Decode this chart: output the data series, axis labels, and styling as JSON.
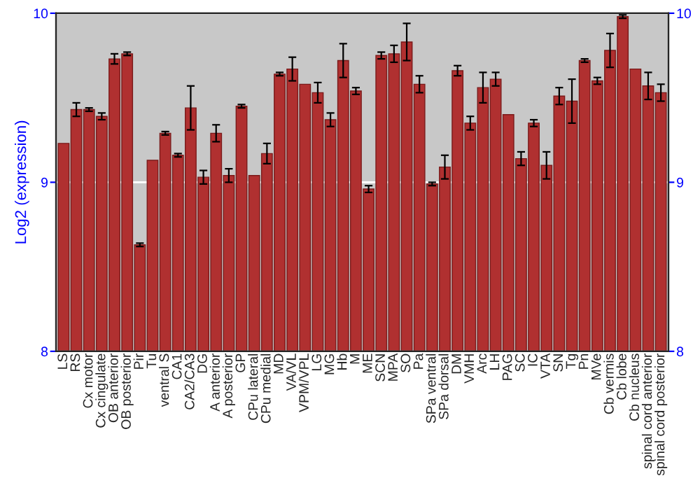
{
  "chart_data": {
    "type": "bar",
    "ylabel": "Log2 (expression)",
    "categories": [
      "LS",
      "RS",
      "Cx motor",
      "Cx cingulate",
      "OB anterior",
      "OB posterior",
      "Pir",
      "Tu",
      "ventral S",
      "CA1",
      "CA2/CA3",
      "DG",
      "A anterior",
      "A posterior",
      "GP",
      "CPu lateral",
      "CPu medial",
      "MD",
      "VA/VL",
      "VPM/VPL",
      "LG",
      "MG",
      "Hb",
      "M",
      "ME",
      "SCN",
      "MPA",
      "SO",
      "Pa",
      "SPa ventral",
      "SPa dorsal",
      "DM",
      "VMH",
      "Arc",
      "LH",
      "PAG",
      "SC",
      "IC",
      "VTA",
      "SN",
      "Tg",
      "Pn",
      "MVe",
      "Cb vermis",
      "Cb lobe",
      "Cb nucleus",
      "spinal cord anterior",
      "spinal cord posterior"
    ],
    "values": [
      9.23,
      9.43,
      9.43,
      9.39,
      9.73,
      9.76,
      8.63,
      9.13,
      9.29,
      9.16,
      9.44,
      9.03,
      9.29,
      9.04,
      9.45,
      9.04,
      9.17,
      9.64,
      9.67,
      9.58,
      9.53,
      9.37,
      9.72,
      9.54,
      8.96,
      9.75,
      9.76,
      9.83,
      9.58,
      8.99,
      9.09,
      9.66,
      9.35,
      9.56,
      9.61,
      9.4,
      9.14,
      9.35,
      9.1,
      9.51,
      9.48,
      9.72,
      9.6,
      9.78,
      9.98,
      9.67,
      9.57,
      9.53
    ],
    "errors": [
      null,
      0.04,
      0.01,
      0.02,
      0.03,
      0.01,
      0.01,
      null,
      0.01,
      0.01,
      0.13,
      0.04,
      0.05,
      0.04,
      0.01,
      null,
      0.06,
      0.01,
      0.07,
      null,
      0.06,
      0.04,
      0.1,
      0.02,
      0.02,
      0.02,
      0.05,
      0.11,
      0.05,
      0.01,
      0.07,
      0.03,
      0.04,
      0.09,
      0.04,
      null,
      0.04,
      0.02,
      0.08,
      0.05,
      0.13,
      0.01,
      0.02,
      0.1,
      0.01,
      null,
      0.08,
      0.05
    ],
    "color": "#b03030",
    "ylim": [
      8,
      10
    ],
    "yticks": [
      8,
      9,
      10
    ],
    "y2lim": [
      8,
      10
    ],
    "y2ticks": [
      8,
      9,
      10
    ],
    "grid": "y"
  }
}
